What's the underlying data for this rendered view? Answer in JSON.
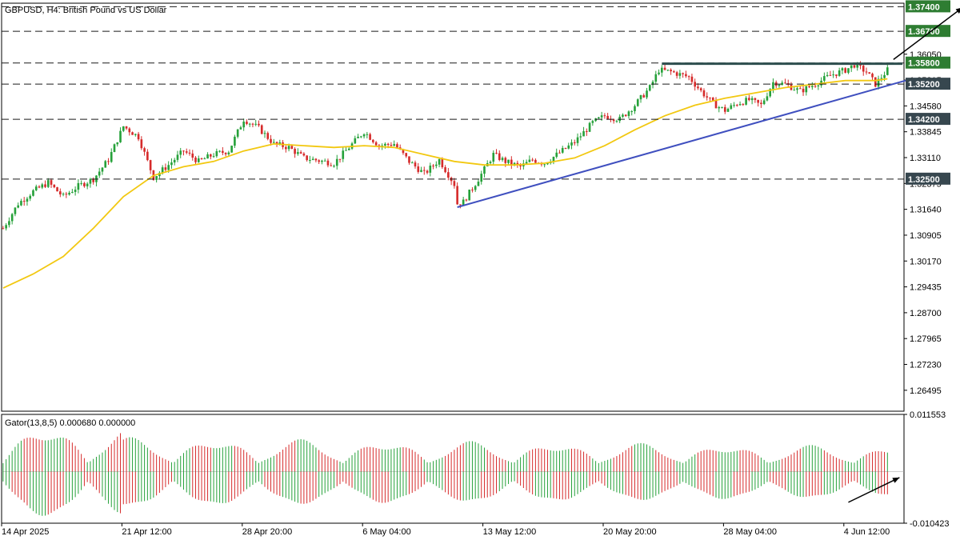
{
  "colors": {
    "bull": "#26a13a",
    "bear": "#d62b2b",
    "ma": "#f2c811",
    "trendline": "#3f4fbf",
    "resistance": "#2f4f4f",
    "level_box": "#2e7d32",
    "level_box_dark": "#37474f",
    "dash_line": "#1a1a1a",
    "arrow": "#000000",
    "axis_text": "#000000",
    "frame": "#000000",
    "zero_line": "#9e9e9e"
  },
  "chart_data": [
    {
      "type": "candlestick",
      "title": "GBPUSD, H4:  British Pound vs US Dollar",
      "ylim": [
        1.259,
        1.375
      ],
      "y_ticks": [
        "1.26495",
        "1.27230",
        "1.27965",
        "1.28700",
        "1.29435",
        "1.30170",
        "1.30905",
        "1.31640",
        "1.32375",
        "1.33110",
        "1.33845",
        "1.34580",
        "1.35315",
        "1.36050"
      ],
      "x_ticks": [
        "14 Apr 2025",
        "21 Apr 12:00",
        "28 Apr 20:00",
        "6 May 04:00",
        "13 May 12:00",
        "20 May 20:00",
        "28 May 04:00",
        "4 Jun 12:00"
      ],
      "x_tick_index": [
        0,
        40,
        80,
        120,
        160,
        200,
        240,
        280
      ],
      "n_bars": 300,
      "anchors": [
        [
          0,
          1.311
        ],
        [
          5,
          1.318
        ],
        [
          10,
          1.3215
        ],
        [
          15,
          1.324
        ],
        [
          20,
          1.32
        ],
        [
          25,
          1.323
        ],
        [
          30,
          1.325
        ],
        [
          35,
          1.3305
        ],
        [
          40,
          1.34
        ],
        [
          45,
          1.337
        ],
        [
          48,
          1.33
        ],
        [
          50,
          1.3255
        ],
        [
          55,
          1.329
        ],
        [
          60,
          1.333
        ],
        [
          65,
          1.33
        ],
        [
          70,
          1.332
        ],
        [
          75,
          1.333
        ],
        [
          80,
          1.342
        ],
        [
          85,
          1.3395
        ],
        [
          90,
          1.335
        ],
        [
          95,
          1.334
        ],
        [
          100,
          1.331
        ],
        [
          110,
          1.3295
        ],
        [
          120,
          1.3385
        ],
        [
          125,
          1.3345
        ],
        [
          130,
          1.335
        ],
        [
          135,
          1.33
        ],
        [
          140,
          1.3265
        ],
        [
          145,
          1.3305
        ],
        [
          150,
          1.3235
        ],
        [
          151,
          1.318
        ],
        [
          153,
          1.3185
        ],
        [
          158,
          1.325
        ],
        [
          163,
          1.332
        ],
        [
          167,
          1.33
        ],
        [
          172,
          1.3285
        ],
        [
          176,
          1.3305
        ],
        [
          180,
          1.3295
        ],
        [
          185,
          1.3325
        ],
        [
          190,
          1.3355
        ],
        [
          196,
          1.341
        ],
        [
          200,
          1.343
        ],
        [
          205,
          1.342
        ],
        [
          210,
          1.346
        ],
        [
          215,
          1.351
        ],
        [
          218,
          1.356
        ],
        [
          222,
          1.3555
        ],
        [
          228,
          1.354
        ],
        [
          232,
          1.35
        ],
        [
          236,
          1.3465
        ],
        [
          240,
          1.3445
        ],
        [
          244,
          1.3465
        ],
        [
          248,
          1.3475
        ],
        [
          252,
          1.346
        ],
        [
          256,
          1.3525
        ],
        [
          260,
          1.352
        ],
        [
          265,
          1.35
        ],
        [
          270,
          1.352
        ],
        [
          275,
          1.3545
        ],
        [
          280,
          1.356
        ],
        [
          283,
          1.3575
        ],
        [
          287,
          1.3555
        ],
        [
          290,
          1.352
        ],
        [
          294,
          1.356
        ]
      ],
      "ma_anchors": [
        [
          0,
          1.294
        ],
        [
          10,
          1.298
        ],
        [
          20,
          1.303
        ],
        [
          30,
          1.311
        ],
        [
          40,
          1.32
        ],
        [
          50,
          1.326
        ],
        [
          60,
          1.3285
        ],
        [
          70,
          1.33
        ],
        [
          80,
          1.333
        ],
        [
          90,
          1.335
        ],
        [
          100,
          1.3345
        ],
        [
          110,
          1.334
        ],
        [
          120,
          1.3345
        ],
        [
          130,
          1.334
        ],
        [
          140,
          1.332
        ],
        [
          150,
          1.33
        ],
        [
          160,
          1.329
        ],
        [
          170,
          1.329
        ],
        [
          180,
          1.3295
        ],
        [
          190,
          1.331
        ],
        [
          200,
          1.3345
        ],
        [
          210,
          1.339
        ],
        [
          220,
          1.343
        ],
        [
          230,
          1.346
        ],
        [
          240,
          1.348
        ],
        [
          250,
          1.3495
        ],
        [
          260,
          1.351
        ],
        [
          270,
          1.352
        ],
        [
          280,
          1.353
        ],
        [
          290,
          1.353
        ],
        [
          294,
          1.3535
        ]
      ],
      "levels": [
        {
          "label": "1.37400",
          "value": 1.374,
          "box": "green"
        },
        {
          "label": "1.36700",
          "value": 1.367,
          "box": "green"
        },
        {
          "label": "1.35800",
          "value": 1.358,
          "box": "green"
        },
        {
          "label": "1.35200",
          "value": 1.352,
          "box": "dark"
        },
        {
          "label": "1.34200",
          "value": 1.342,
          "box": "dark"
        },
        {
          "label": "1.32500",
          "value": 1.325,
          "box": "dark"
        }
      ],
      "trendline": {
        "from": [
          151,
          1.317
        ],
        "to": [
          300,
          1.353
        ]
      },
      "resistance_line": {
        "from": [
          219,
          1.3578
        ],
        "to": [
          299,
          1.3578
        ]
      },
      "breakout_arrow": {
        "from": [
          296,
          1.359
        ],
        "to": [
          319,
          1.3738
        ]
      }
    },
    {
      "type": "histogram",
      "title": "Gator(13,8,5) 0.000680 0.000000",
      "ylim": [
        -0.010423,
        0.011553
      ],
      "y_ticks": [
        "0.011553",
        "-0.010423"
      ],
      "arrow": {
        "from": [
          281,
          -0.0062
        ],
        "to": [
          298,
          -0.0012
        ]
      }
    }
  ]
}
